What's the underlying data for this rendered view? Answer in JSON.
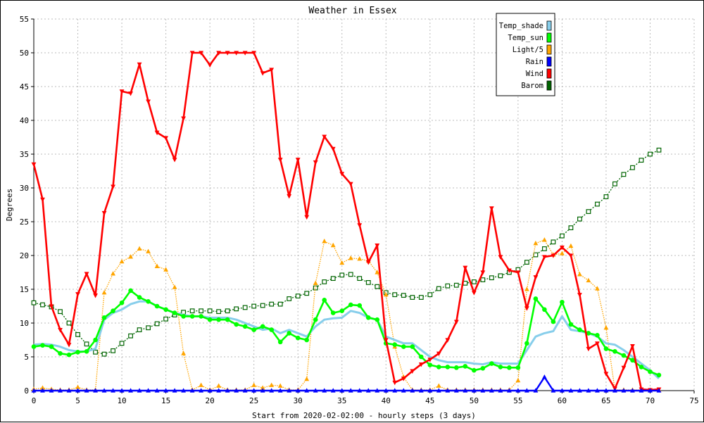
{
  "chart_data": {
    "type": "line",
    "title": "Weather in Essex",
    "xlabel": "Start from 2020-02-02:00 - hourly steps (3 days)",
    "ylabel": "Degrees",
    "xlim": [
      0,
      75
    ],
    "ylim": [
      0,
      55
    ],
    "xticks": [
      0,
      5,
      10,
      15,
      20,
      25,
      30,
      35,
      40,
      45,
      50,
      55,
      60,
      65,
      70,
      75
    ],
    "yticks": [
      0,
      5,
      10,
      15,
      20,
      25,
      30,
      35,
      40,
      45,
      50,
      55
    ],
    "grid": true,
    "legend_position": "top-right",
    "series": [
      {
        "name": "Temp_shade",
        "color": "#87ceeb",
        "marker": "none",
        "dash": false,
        "values": [
          6.8,
          6.9,
          6.8,
          6.5,
          6.0,
          5.8,
          5.8,
          6.2,
          10.5,
          11.5,
          12.0,
          12.8,
          13.2,
          13.2,
          12.5,
          12.0,
          11.5,
          11.2,
          11.0,
          11.0,
          10.8,
          10.8,
          10.8,
          10.5,
          10.0,
          9.5,
          9.0,
          9.2,
          8.5,
          9.0,
          8.5,
          8.0,
          9.5,
          10.5,
          10.7,
          10.8,
          11.8,
          11.5,
          10.8,
          10.5,
          8.0,
          7.5,
          7.0,
          7.0,
          6.0,
          5.0,
          4.5,
          4.2,
          4.2,
          4.2,
          4.0,
          3.9,
          4.2,
          4.0,
          4.0,
          4.0,
          6.0,
          8.0,
          8.5,
          8.8,
          11.0,
          9.0,
          8.8,
          8.5,
          8.0,
          7.0,
          6.8,
          6.0,
          5.0,
          4.0,
          3.0,
          1.8
        ]
      },
      {
        "name": "Temp_sun",
        "color": "#00ff00",
        "marker": "circle",
        "dash": false,
        "values": [
          6.5,
          6.7,
          6.5,
          5.5,
          5.3,
          5.7,
          5.8,
          7.5,
          10.8,
          11.8,
          13.0,
          14.8,
          13.8,
          13.2,
          12.5,
          12.0,
          11.5,
          11.0,
          11.0,
          11.0,
          10.5,
          10.5,
          10.5,
          9.8,
          9.5,
          9.0,
          9.5,
          9.0,
          7.2,
          8.5,
          7.8,
          7.5,
          10.5,
          13.4,
          11.5,
          11.8,
          12.7,
          12.6,
          10.8,
          10.5,
          7.0,
          6.8,
          6.5,
          6.5,
          5.0,
          3.8,
          3.5,
          3.5,
          3.4,
          3.6,
          3.0,
          3.3,
          4.0,
          3.5,
          3.4,
          3.4,
          7.0,
          13.6,
          12.0,
          10.2,
          13.1,
          9.8,
          9.0,
          8.5,
          8.2,
          6.2,
          5.8,
          5.2,
          4.5,
          3.5,
          2.8,
          2.3
        ]
      },
      {
        "name": "Light/5",
        "color": "#ffa500",
        "marker": "triangle-up",
        "dash": true,
        "values": [
          0.2,
          0.4,
          0.2,
          0.1,
          0.1,
          0.5,
          0.1,
          0.1,
          14.5,
          17.3,
          19.1,
          19.8,
          21.0,
          20.6,
          18.4,
          17.9,
          15.3,
          5.5,
          0.1,
          0.8,
          0.1,
          0.7,
          0.1,
          0.1,
          0.1,
          0.8,
          0.4,
          0.8,
          0.7,
          0.1,
          0.1,
          1.7,
          15.9,
          22.1,
          21.5,
          18.9,
          19.6,
          19.5,
          19.2,
          17.5,
          14.2,
          6.5,
          2.0,
          0.1,
          0.1,
          0.1,
          0.7,
          0.1,
          0.1,
          0.1,
          0.1,
          0.1,
          0.1,
          0.1,
          0.1,
          1.5,
          15.0,
          21.8,
          22.3,
          20.1,
          20.3,
          21.4,
          17.2,
          16.3,
          15.1,
          9.3,
          0.1,
          0.1,
          0.1,
          0.1,
          0.1,
          0.1
        ]
      },
      {
        "name": "Rain",
        "color": "#0000ff",
        "marker": "triangle-up",
        "dash": false,
        "values": [
          0,
          0,
          0,
          0,
          0,
          0,
          0,
          0,
          0,
          0,
          0,
          0,
          0,
          0,
          0,
          0,
          0,
          0,
          0,
          0,
          0,
          0,
          0,
          0,
          0,
          0,
          0,
          0,
          0,
          0,
          0,
          0,
          0,
          0,
          0,
          0,
          0,
          0,
          0,
          0,
          0,
          0,
          0,
          0,
          0,
          0,
          0,
          0,
          0,
          0,
          0,
          0,
          0,
          0,
          0,
          0,
          0,
          0,
          2.0,
          0,
          0,
          0,
          0,
          0,
          0,
          0,
          0,
          0,
          0,
          0,
          0,
          0
        ]
      },
      {
        "name": "Wind",
        "color": "#ff0000",
        "marker": "triangle-down",
        "dash": false,
        "values": [
          33.5,
          28.3,
          12.5,
          9.0,
          6.8,
          14.3,
          17.3,
          14.1,
          26.3,
          30.2,
          44.3,
          44.0,
          48.3,
          42.8,
          38.2,
          37.4,
          34.2,
          40.3,
          50.0,
          50.0,
          48.2,
          50.0,
          50.0,
          50.0,
          50.0,
          50.0,
          47.0,
          47.5,
          34.2,
          28.8,
          34.2,
          25.7,
          33.8,
          37.6,
          35.8,
          32.1,
          30.6,
          24.5,
          19.0,
          21.5,
          7.5,
          1.2,
          1.8,
          2.9,
          3.9,
          4.6,
          5.5,
          7.5,
          10.2,
          18.2,
          14.5,
          17.5,
          27.0,
          19.8,
          17.8,
          17.5,
          12.2,
          16.8,
          19.8,
          20.0,
          21.2,
          20.0,
          14.2,
          6.2,
          7.0,
          2.5,
          0.3,
          3.4,
          6.6,
          0.2,
          0.1,
          0.2
        ]
      },
      {
        "name": "Barom",
        "color": "#006400",
        "marker": "square-open",
        "dash": true,
        "values": [
          13.0,
          12.7,
          12.4,
          11.7,
          10.0,
          8.3,
          6.9,
          5.7,
          5.4,
          5.9,
          7.0,
          8.1,
          9.0,
          9.3,
          9.9,
          10.6,
          11.2,
          11.6,
          11.8,
          11.8,
          11.8,
          11.7,
          11.8,
          12.1,
          12.3,
          12.5,
          12.6,
          12.8,
          12.8,
          13.6,
          14.0,
          14.4,
          15.2,
          16.1,
          16.6,
          17.1,
          17.2,
          16.6,
          16.0,
          15.4,
          14.5,
          14.2,
          14.1,
          13.8,
          13.8,
          14.2,
          15.1,
          15.5,
          15.6,
          15.9,
          16.1,
          16.4,
          16.7,
          17.0,
          17.5,
          17.9,
          19.0,
          20.1,
          21.0,
          22.0,
          22.9,
          24.1,
          25.4,
          26.5,
          27.6,
          28.7,
          30.6,
          32.0,
          33.0,
          34.1,
          35.0,
          35.6
        ]
      }
    ]
  }
}
